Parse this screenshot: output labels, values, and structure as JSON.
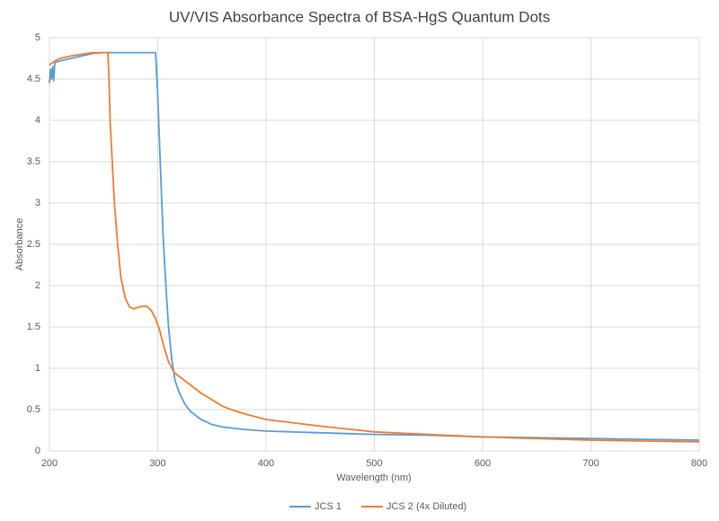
{
  "chart_data": {
    "type": "line",
    "title": "UV/VIS Absorbance Spectra of BSA-HgS Quantum Dots",
    "x_label": "Wavelength (nm)",
    "y_label": "Absorbance",
    "xlim": [
      200,
      800
    ],
    "xticks": [
      200,
      300,
      400,
      500,
      600,
      700,
      800
    ],
    "ylim": [
      0,
      5
    ],
    "yticks": [
      0,
      0.5,
      1,
      1.5,
      2,
      2.5,
      3,
      3.5,
      4,
      4.5,
      5
    ],
    "grid": true,
    "legend": "bottom",
    "series": [
      {
        "name": "JCS 1",
        "color": "#5b9bd5",
        "x": [
          200,
          201,
          202,
          203,
          204,
          205,
          210,
          220,
          230,
          240,
          250,
          260,
          280,
          298,
          300,
          302,
          305,
          308,
          310,
          313,
          316,
          320,
          325,
          330,
          340,
          350,
          360,
          380,
          400,
          450,
          500,
          550,
          600,
          650,
          700,
          750,
          800
        ],
        "values": [
          4.45,
          4.62,
          4.5,
          4.65,
          4.48,
          4.7,
          4.72,
          4.75,
          4.78,
          4.81,
          4.82,
          4.82,
          4.82,
          4.82,
          4.3,
          3.6,
          2.6,
          1.9,
          1.5,
          1.1,
          0.85,
          0.7,
          0.57,
          0.48,
          0.38,
          0.32,
          0.29,
          0.26,
          0.24,
          0.22,
          0.2,
          0.19,
          0.17,
          0.16,
          0.15,
          0.14,
          0.13
        ]
      },
      {
        "name": "JCS 2 (4x Diluted)",
        "color": "#ed7d31",
        "x": [
          200,
          205,
          210,
          220,
          230,
          240,
          254,
          255,
          256,
          258,
          260,
          263,
          266,
          270,
          274,
          278,
          282,
          286,
          290,
          294,
          298,
          302,
          306,
          310,
          315,
          320,
          330,
          340,
          350,
          360,
          370,
          380,
          400,
          450,
          500,
          550,
          600,
          650,
          700,
          750,
          800
        ],
        "values": [
          4.67,
          4.72,
          4.75,
          4.78,
          4.8,
          4.82,
          4.82,
          4.5,
          4.0,
          3.5,
          3.0,
          2.5,
          2.1,
          1.85,
          1.74,
          1.72,
          1.74,
          1.75,
          1.75,
          1.7,
          1.6,
          1.45,
          1.25,
          1.08,
          0.95,
          0.9,
          0.8,
          0.7,
          0.62,
          0.54,
          0.49,
          0.45,
          0.38,
          0.3,
          0.23,
          0.2,
          0.17,
          0.15,
          0.13,
          0.12,
          0.11
        ]
      }
    ]
  }
}
